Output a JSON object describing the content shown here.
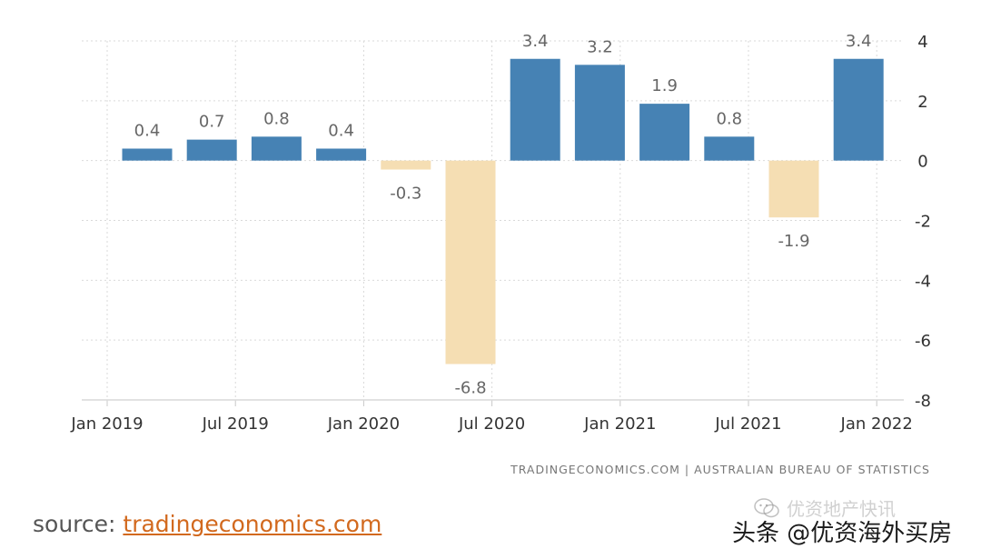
{
  "chart_data": {
    "type": "bar",
    "title": "",
    "xlabel": "",
    "ylabel": "",
    "categories": [
      "Mar 2019",
      "Jun 2019",
      "Sep 2019",
      "Dec 2019",
      "Mar 2020",
      "Jun 2020",
      "Sep 2020",
      "Dec 2020",
      "Mar 2021",
      "Jun 2021",
      "Sep 2021",
      "Dec 2021"
    ],
    "values": [
      0.4,
      0.7,
      0.8,
      0.4,
      -0.3,
      -6.8,
      3.4,
      3.2,
      1.9,
      0.8,
      -1.9,
      3.4
    ],
    "value_labels": [
      "0.4",
      "0.7",
      "0.8",
      "0.4",
      "-0.3",
      "-6.8",
      "3.4",
      "3.2",
      "1.9",
      "0.8",
      "-1.9",
      "3.4"
    ],
    "x_ticks": [
      "Jan 2019",
      "Jul 2019",
      "Jan 2020",
      "Jul 2020",
      "Jan 2021",
      "Jul 2021",
      "Jan 2022"
    ],
    "y_ticks": [
      4,
      2,
      0,
      -2,
      -4,
      -6,
      -8
    ],
    "y_tick_labels": [
      "4",
      "2",
      "0",
      "-2",
      "-4",
      "-6",
      "-8"
    ],
    "ylim": [
      -8,
      4
    ],
    "grid": true,
    "positive_color": "#4682b4",
    "negative_color": "#f5deb3",
    "credit": "TRADINGECONOMICS.COM  |  AUSTRALIAN BUREAU OF STATISTICS"
  },
  "source": {
    "prefix": "source: ",
    "link_text": "tradingeconomics.com",
    "link_color": "#d2691e"
  },
  "watermark": {
    "wechat_icon": "wechat-icon",
    "account": "优资地产快讯",
    "byline": "头条 @优资海外买房"
  }
}
